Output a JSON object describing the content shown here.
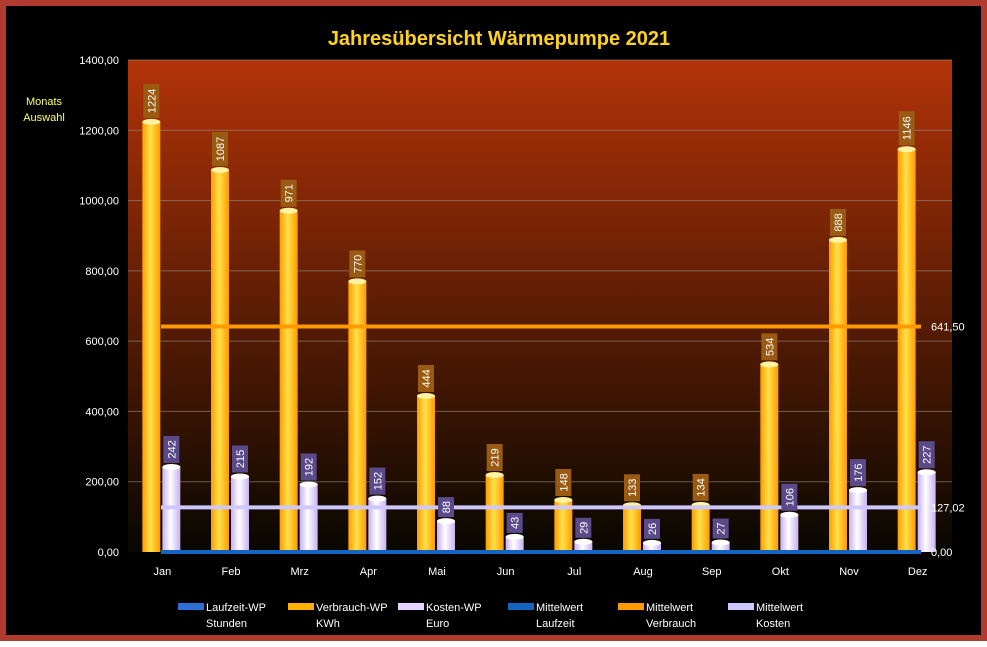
{
  "chart_data": {
    "type": "bar",
    "title": "Jahresübersicht Wärmepumpe  2021",
    "side_label_line1": "Monats",
    "side_label_line2": "Auswahl",
    "categories": [
      "Jan",
      "Feb",
      "Mrz",
      "Apr",
      "Mai",
      "Jun",
      "Jul",
      "Aug",
      "Sep",
      "Okt",
      "Nov",
      "Dez"
    ],
    "ylim": [
      0,
      1400
    ],
    "yticks": [
      "0,00",
      "200,00",
      "400,00",
      "600,00",
      "800,00",
      "1000,00",
      "1200,00",
      "1400,00"
    ],
    "yticks_values": [
      0,
      200,
      400,
      600,
      800,
      1000,
      1200,
      1400
    ],
    "grid": true,
    "series": [
      {
        "name": "Laufzeit-WP Stunden",
        "legend_line1": "Laufzeit-WP",
        "legend_line2": "Stunden",
        "values": [
          0,
          0,
          0,
          0,
          0,
          0,
          0,
          0,
          0,
          0,
          0,
          0
        ],
        "color": "#2e6fd6"
      },
      {
        "name": "Verbrauch-WP KWh",
        "legend_line1": "Verbrauch-WP",
        "legend_line2": "KWh",
        "values": [
          1224,
          1087,
          971,
          770,
          444,
          219,
          148,
          133,
          134,
          534,
          888,
          1146
        ],
        "color": "#ffb000"
      },
      {
        "name": "Kosten-WP Euro",
        "legend_line1": "Kosten-WP",
        "legend_line2": "Euro",
        "values": [
          242,
          215,
          192,
          152,
          88,
          43,
          29,
          26,
          27,
          106,
          176,
          227
        ],
        "color": "#e4d2ff"
      }
    ],
    "reference_lines": [
      {
        "name": "Mittelwert Laufzeit",
        "legend_line1": "Mittelwert",
        "legend_line2": "Laufzeit",
        "value": 0,
        "label": "0,00",
        "color": "#1565c0"
      },
      {
        "name": "Mittelwert Verbrauch",
        "legend_line1": "Mittelwert",
        "legend_line2": "Verbrauch",
        "value": 641.5,
        "label": "641,50",
        "color": "#ff9900"
      },
      {
        "name": "Mittelwert Kosten",
        "legend_line1": "Mittelwert",
        "legend_line2": "Kosten",
        "value": 127.02,
        "label": "127,02",
        "color": "#cfc8ff"
      }
    ],
    "colors": {
      "title": "#ffd21f",
      "side_label": "#ffff66",
      "frame": "#b03a2e",
      "plot_top": "#b23308",
      "plot_bottom": "#070700",
      "verbrauch_label_bg": "#9a5a12",
      "kosten_label_bg": "#5a4a8a"
    }
  }
}
